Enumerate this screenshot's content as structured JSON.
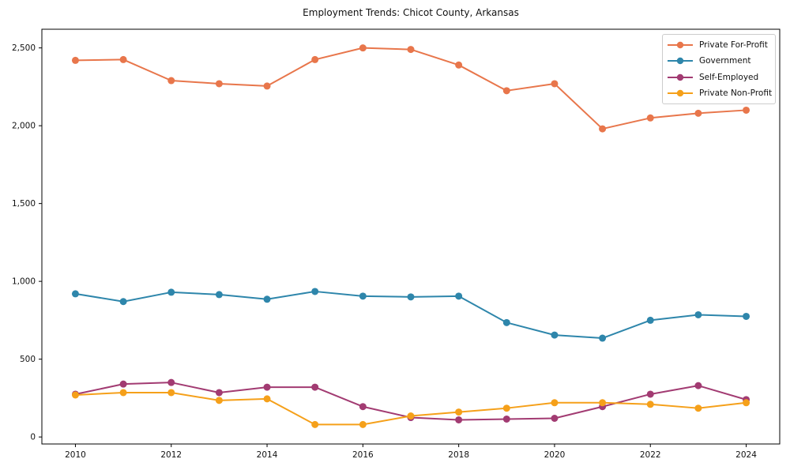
{
  "chart_data": {
    "type": "line",
    "title": "Employment Trends: Chicot County, Arkansas",
    "xlabel": "",
    "ylabel": "",
    "x": [
      2010,
      2011,
      2012,
      2013,
      2014,
      2015,
      2016,
      2017,
      2018,
      2019,
      2020,
      2021,
      2022,
      2023,
      2024
    ],
    "series": [
      {
        "name": "Private For-Profit",
        "color": "#E8764B",
        "values": [
          2420,
          2425,
          2290,
          2270,
          2255,
          2425,
          2500,
          2490,
          2390,
          2225,
          2270,
          1980,
          2050,
          2080,
          2100
        ]
      },
      {
        "name": "Government",
        "color": "#2E86AB",
        "values": [
          920,
          870,
          930,
          915,
          885,
          935,
          905,
          900,
          905,
          735,
          655,
          635,
          750,
          785,
          775
        ]
      },
      {
        "name": "Self-Employed",
        "color": "#A23B72",
        "values": [
          275,
          340,
          350,
          285,
          320,
          320,
          195,
          125,
          110,
          115,
          120,
          195,
          275,
          330,
          240
        ]
      },
      {
        "name": "Private Non-Profit",
        "color": "#F5A01A",
        "values": [
          270,
          285,
          285,
          235,
          245,
          80,
          80,
          135,
          160,
          185,
          220,
          220,
          210,
          185,
          220
        ]
      }
    ],
    "xticks": [
      2010,
      2012,
      2014,
      2016,
      2018,
      2020,
      2022,
      2024
    ],
    "xtick_labels": [
      "2010",
      "2012",
      "2014",
      "2016",
      "2018",
      "2020",
      "2022",
      "2024"
    ],
    "yticks": [
      0,
      500,
      1000,
      1500,
      2000,
      2500
    ],
    "ytick_labels": [
      "0",
      "500",
      "1,000",
      "1,500",
      "2,000",
      "2,500"
    ],
    "xlim": [
      2009.3,
      2024.7
    ],
    "ylim": [
      -45,
      2620
    ],
    "grid": false,
    "legend_position": "upper right",
    "axis_color": "#000000",
    "text_color": "#111111",
    "marker": "circle",
    "marker_radius": 4.5,
    "line_width": 2
  }
}
